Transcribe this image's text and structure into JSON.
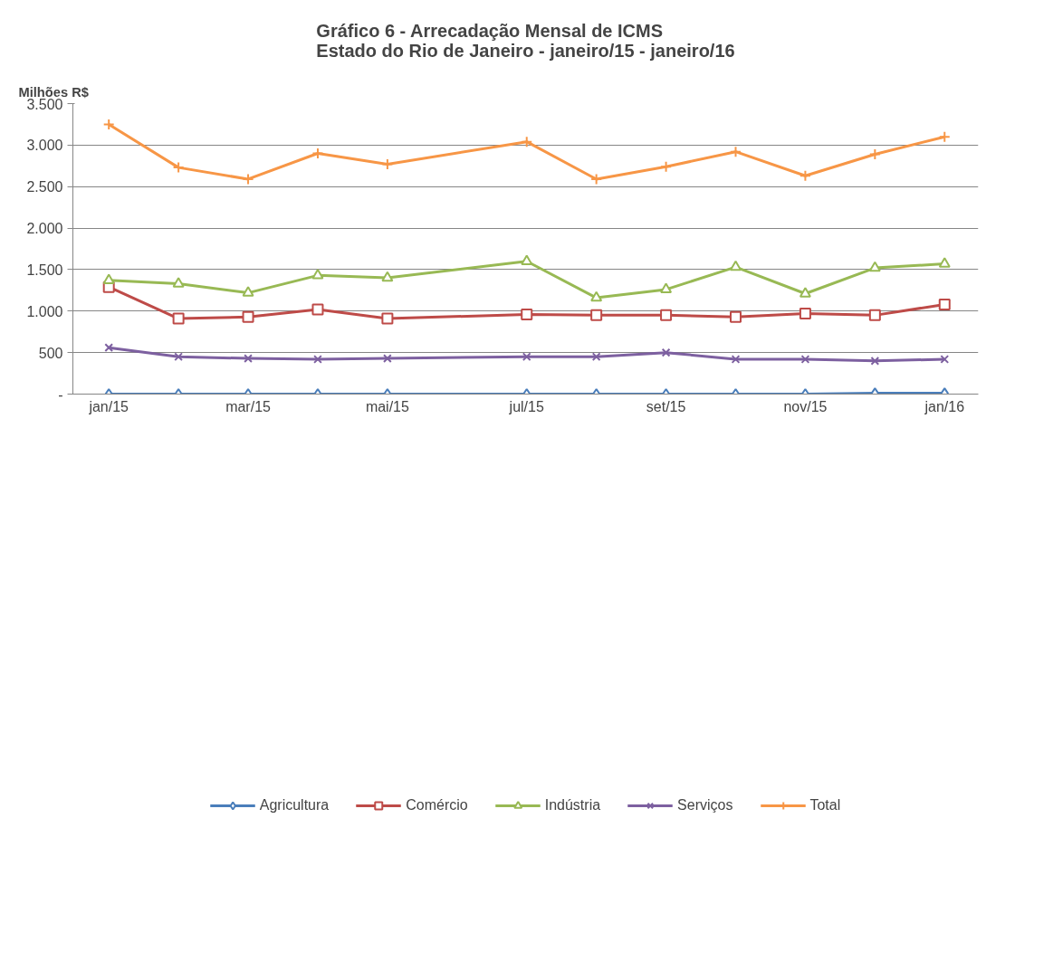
{
  "chart_data": {
    "type": "line",
    "title": "Gráfico 6 - Arrecadação Mensal de ICMS\nEstado do Rio de Janeiro - janeiro/15 - janeiro/16",
    "ylabel": "Milhões R$",
    "x": [
      "2015-01",
      "2015-02",
      "2015-03",
      "2015-04",
      "2015-05",
      "2015-07",
      "2015-08",
      "2015-09",
      "2015-10",
      "2015-11",
      "2015-12",
      "2016-01"
    ],
    "series": [
      {
        "name": "Agricultura",
        "color": "#4a7ebb",
        "marker": "diamond",
        "values": [
          0,
          0,
          0,
          0,
          0,
          0,
          0,
          0,
          0,
          0,
          10,
          10
        ]
      },
      {
        "name": "Comércio",
        "color": "#be4b48",
        "marker": "square",
        "values": [
          1290,
          910,
          930,
          1020,
          910,
          960,
          950,
          950,
          930,
          970,
          950,
          1080
        ]
      },
      {
        "name": "Indústria",
        "color": "#98b954",
        "marker": "triangle",
        "values": [
          1370,
          1330,
          1220,
          1430,
          1400,
          1600,
          1160,
          1260,
          1530,
          1210,
          1520,
          1570
        ]
      },
      {
        "name": "Serviços",
        "color": "#7d60a0",
        "marker": "x",
        "values": [
          560,
          450,
          430,
          420,
          430,
          450,
          450,
          500,
          420,
          420,
          400,
          420
        ]
      },
      {
        "name": "Total",
        "color": "#f79646",
        "marker": "cross",
        "values": [
          3250,
          2730,
          2590,
          2900,
          2770,
          3040,
          2590,
          2740,
          2920,
          2630,
          2890,
          3100
        ]
      }
    ],
    "xlim": [
      "2014-12-16",
      "2016-01-16"
    ],
    "xticks": [
      {
        "value": "2015-01",
        "label": "jan/15"
      },
      {
        "value": "2015-03",
        "label": "mar/15"
      },
      {
        "value": "2015-05",
        "label": "mai/15"
      },
      {
        "value": "2015-07",
        "label": "jul/15"
      },
      {
        "value": "2015-09",
        "label": "set/15"
      },
      {
        "value": "2015-11",
        "label": "nov/15"
      },
      {
        "value": "2016-01",
        "label": "jan/16"
      }
    ],
    "ylim": [
      0,
      3500
    ],
    "yticks": [
      {
        "value": 0,
        "label": "-"
      },
      {
        "value": 500,
        "label": "500"
      },
      {
        "value": 1000,
        "label": "1.000"
      },
      {
        "value": 1500,
        "label": "1.500"
      },
      {
        "value": 2000,
        "label": "2.000"
      },
      {
        "value": 2500,
        "label": "2.500"
      },
      {
        "value": 3000,
        "label": "3.000"
      },
      {
        "value": 3500,
        "label": "3.500"
      }
    ],
    "grid": "y",
    "legend": "bottom",
    "line_style": "solid"
  }
}
